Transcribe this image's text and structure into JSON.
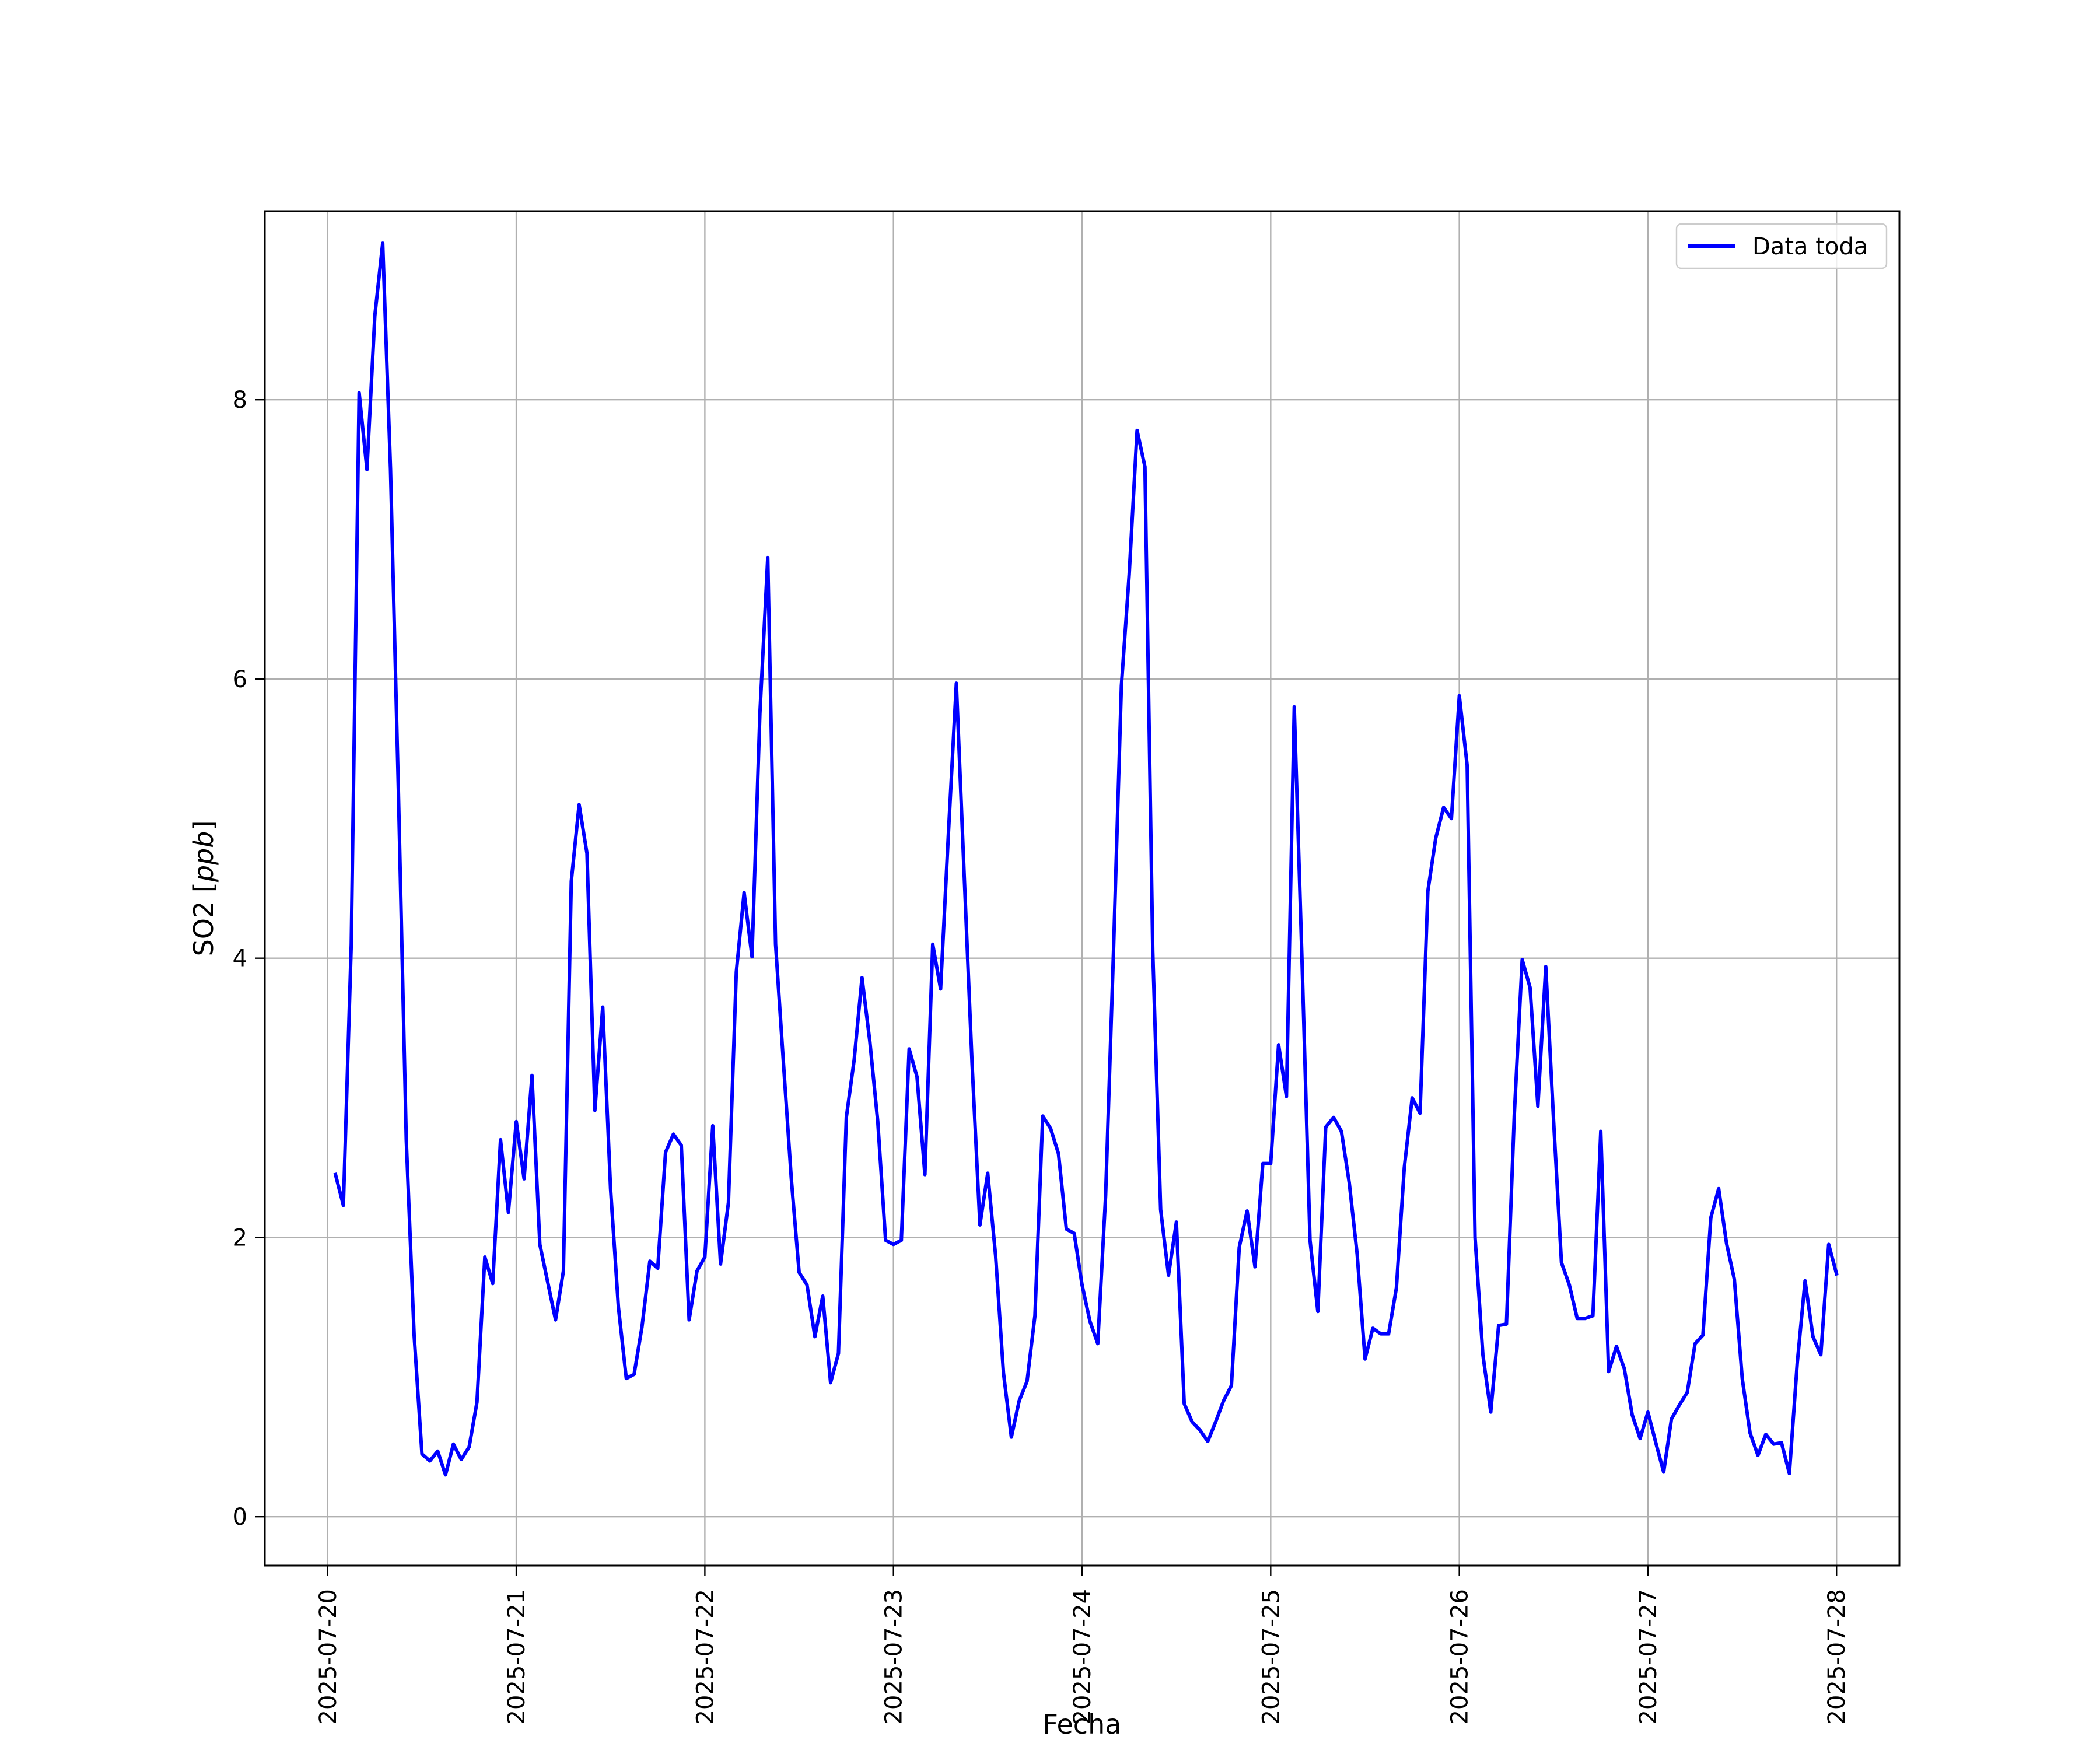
{
  "chart_data": {
    "type": "line",
    "title": "",
    "xlabel": "Fecha",
    "ylabel": "SO2 [ppb]",
    "ylabel_italic_part": "ppb",
    "xlim": [
      "2025-07-19T16:00",
      "2025-07-28T08:00"
    ],
    "ylim": [
      -0.35,
      9.35
    ],
    "x_ticks": [
      "2025-07-20",
      "2025-07-21",
      "2025-07-22",
      "2025-07-23",
      "2025-07-24",
      "2025-07-25",
      "2025-07-26",
      "2025-07-27",
      "2025-07-28"
    ],
    "y_ticks": [
      "0",
      "2",
      "4",
      "6",
      "8"
    ],
    "grid": true,
    "legend": {
      "position": "top-right",
      "entries": [
        "Data toda"
      ]
    },
    "series": [
      {
        "name": "Data toda",
        "color": "#0000ff",
        "x_start": "2025-07-20T01:00",
        "x_step": "hourly_2h",
        "points": [
          [
            "2025-07-20T01:00",
            2.45
          ],
          [
            "2025-07-20T02:00",
            2.23
          ],
          [
            "2025-07-20T03:00",
            4.1
          ],
          [
            "2025-07-20T04:00",
            8.05
          ],
          [
            "2025-07-20T05:00",
            7.5
          ],
          [
            "2025-07-20T06:00",
            8.6
          ],
          [
            "2025-07-20T07:00",
            9.12
          ],
          [
            "2025-07-20T08:00",
            7.5
          ],
          [
            "2025-07-20T09:00",
            5.2
          ],
          [
            "2025-07-20T10:00",
            2.7
          ],
          [
            "2025-07-20T11:00",
            1.3
          ],
          [
            "2025-07-20T12:00",
            0.45
          ],
          [
            "2025-07-20T13:00",
            0.4
          ],
          [
            "2025-07-20T14:00",
            0.47
          ],
          [
            "2025-07-20T15:00",
            0.3
          ],
          [
            "2025-07-20T16:00",
            0.52
          ],
          [
            "2025-07-20T17:00",
            0.41
          ],
          [
            "2025-07-20T18:00",
            0.5
          ],
          [
            "2025-07-20T19:00",
            0.82
          ],
          [
            "2025-07-20T20:00",
            1.86
          ],
          [
            "2025-07-20T21:00",
            1.67
          ],
          [
            "2025-07-20T22:00",
            2.7
          ],
          [
            "2025-07-20T23:00",
            2.18
          ],
          [
            "2025-07-21T00:00",
            2.83
          ],
          [
            "2025-07-21T01:00",
            2.42
          ],
          [
            "2025-07-21T02:00",
            3.16
          ],
          [
            "2025-07-21T03:00",
            1.95
          ],
          [
            "2025-07-21T04:00",
            1.68
          ],
          [
            "2025-07-21T05:00",
            1.41
          ],
          [
            "2025-07-21T06:00",
            1.76
          ],
          [
            "2025-07-21T07:00",
            4.55
          ],
          [
            "2025-07-21T08:00",
            5.1
          ],
          [
            "2025-07-21T09:00",
            4.75
          ],
          [
            "2025-07-21T10:00",
            2.91
          ],
          [
            "2025-07-21T11:00",
            3.65
          ],
          [
            "2025-07-21T12:00",
            2.35
          ],
          [
            "2025-07-21T13:00",
            1.5
          ],
          [
            "2025-07-21T14:00",
            0.99
          ],
          [
            "2025-07-21T15:00",
            1.02
          ],
          [
            "2025-07-21T16:00",
            1.36
          ],
          [
            "2025-07-21T17:00",
            1.83
          ],
          [
            "2025-07-21T18:00",
            1.78
          ],
          [
            "2025-07-21T19:00",
            2.61
          ],
          [
            "2025-07-21T20:00",
            2.74
          ],
          [
            "2025-07-21T21:00",
            2.66
          ],
          [
            "2025-07-21T22:00",
            1.41
          ],
          [
            "2025-07-21T23:00",
            1.76
          ],
          [
            "2025-07-22T00:00",
            1.86
          ],
          [
            "2025-07-22T01:00",
            2.8
          ],
          [
            "2025-07-22T02:00",
            1.81
          ],
          [
            "2025-07-22T03:00",
            2.25
          ],
          [
            "2025-07-22T04:00",
            3.9
          ],
          [
            "2025-07-22T05:00",
            4.47
          ],
          [
            "2025-07-22T06:00",
            4.01
          ],
          [
            "2025-07-22T07:00",
            5.75
          ],
          [
            "2025-07-22T08:00",
            6.87
          ],
          [
            "2025-07-22T09:00",
            4.1
          ],
          [
            "2025-07-22T10:00",
            3.25
          ],
          [
            "2025-07-22T11:00",
            2.42
          ],
          [
            "2025-07-22T12:00",
            1.75
          ],
          [
            "2025-07-22T13:00",
            1.66
          ],
          [
            "2025-07-22T14:00",
            1.29
          ],
          [
            "2025-07-22T15:00",
            1.58
          ],
          [
            "2025-07-22T16:00",
            0.96
          ],
          [
            "2025-07-22T17:00",
            1.17
          ],
          [
            "2025-07-22T18:00",
            2.86
          ],
          [
            "2025-07-22T19:00",
            3.27
          ],
          [
            "2025-07-22T20:00",
            3.86
          ],
          [
            "2025-07-22T21:00",
            3.4
          ],
          [
            "2025-07-22T22:00",
            2.83
          ],
          [
            "2025-07-22T23:00",
            1.98
          ],
          [
            "2025-07-23T00:00",
            1.95
          ],
          [
            "2025-07-23T01:00",
            1.98
          ],
          [
            "2025-07-23T02:00",
            3.35
          ],
          [
            "2025-07-23T03:00",
            3.15
          ],
          [
            "2025-07-23T04:00",
            2.45
          ],
          [
            "2025-07-23T05:00",
            4.1
          ],
          [
            "2025-07-23T06:00",
            3.78
          ],
          [
            "2025-07-23T07:00",
            4.9
          ],
          [
            "2025-07-23T08:00",
            5.97
          ],
          [
            "2025-07-23T09:00",
            4.6
          ],
          [
            "2025-07-23T10:00",
            3.25
          ],
          [
            "2025-07-23T11:00",
            2.09
          ],
          [
            "2025-07-23T12:00",
            2.46
          ],
          [
            "2025-07-23T13:00",
            1.87
          ],
          [
            "2025-07-23T14:00",
            1.03
          ],
          [
            "2025-07-23T15:00",
            0.57
          ],
          [
            "2025-07-23T16:00",
            0.83
          ],
          [
            "2025-07-23T17:00",
            0.97
          ],
          [
            "2025-07-23T18:00",
            1.44
          ],
          [
            "2025-07-23T19:00",
            2.87
          ],
          [
            "2025-07-23T20:00",
            2.78
          ],
          [
            "2025-07-23T21:00",
            2.6
          ],
          [
            "2025-07-23T22:00",
            2.06
          ],
          [
            "2025-07-23T23:00",
            2.03
          ],
          [
            "2025-07-24T00:00",
            1.66
          ],
          [
            "2025-07-24T01:00",
            1.4
          ],
          [
            "2025-07-24T02:00",
            1.24
          ],
          [
            "2025-07-24T03:00",
            2.3
          ],
          [
            "2025-07-24T04:00",
            4.05
          ],
          [
            "2025-07-24T05:00",
            5.95
          ],
          [
            "2025-07-24T06:00",
            6.75
          ],
          [
            "2025-07-24T07:00",
            7.78
          ],
          [
            "2025-07-24T08:00",
            7.52
          ],
          [
            "2025-07-24T09:00",
            4.05
          ],
          [
            "2025-07-24T10:00",
            2.2
          ],
          [
            "2025-07-24T11:00",
            1.73
          ],
          [
            "2025-07-24T12:00",
            2.11
          ],
          [
            "2025-07-24T13:00",
            0.81
          ],
          [
            "2025-07-24T14:00",
            0.68
          ],
          [
            "2025-07-24T15:00",
            0.62
          ],
          [
            "2025-07-24T16:00",
            0.54
          ],
          [
            "2025-07-24T17:00",
            0.68
          ],
          [
            "2025-07-24T18:00",
            0.83
          ],
          [
            "2025-07-24T19:00",
            0.94
          ],
          [
            "2025-07-24T20:00",
            1.93
          ],
          [
            "2025-07-24T21:00",
            2.19
          ],
          [
            "2025-07-24T22:00",
            1.79
          ],
          [
            "2025-07-24T23:00",
            2.53
          ],
          [
            "2025-07-25T00:00",
            2.53
          ],
          [
            "2025-07-25T01:00",
            3.38
          ],
          [
            "2025-07-25T02:00",
            3.01
          ],
          [
            "2025-07-25T03:00",
            5.8
          ],
          [
            "2025-07-25T04:00",
            3.95
          ],
          [
            "2025-07-25T05:00",
            1.98
          ],
          [
            "2025-07-25T06:00",
            1.47
          ],
          [
            "2025-07-25T07:00",
            2.79
          ],
          [
            "2025-07-25T08:00",
            2.86
          ],
          [
            "2025-07-25T09:00",
            2.76
          ],
          [
            "2025-07-25T10:00",
            2.39
          ],
          [
            "2025-07-25T11:00",
            1.88
          ],
          [
            "2025-07-25T12:00",
            1.13
          ],
          [
            "2025-07-25T13:00",
            1.35
          ],
          [
            "2025-07-25T14:00",
            1.31
          ],
          [
            "2025-07-25T15:00",
            1.31
          ],
          [
            "2025-07-25T16:00",
            1.64
          ],
          [
            "2025-07-25T17:00",
            2.5
          ],
          [
            "2025-07-25T18:00",
            3.0
          ],
          [
            "2025-07-25T19:00",
            2.89
          ],
          [
            "2025-07-25T20:00",
            4.48
          ],
          [
            "2025-07-25T21:00",
            4.86
          ],
          [
            "2025-07-25T22:00",
            5.08
          ],
          [
            "2025-07-25T23:00",
            5.0
          ],
          [
            "2025-07-26T00:00",
            5.88
          ],
          [
            "2025-07-26T01:00",
            5.38
          ],
          [
            "2025-07-26T02:00",
            2.0
          ],
          [
            "2025-07-26T03:00",
            1.16
          ],
          [
            "2025-07-26T04:00",
            0.75
          ],
          [
            "2025-07-26T05:00",
            1.37
          ],
          [
            "2025-07-26T06:00",
            1.38
          ],
          [
            "2025-07-26T07:00",
            2.88
          ],
          [
            "2025-07-26T08:00",
            3.99
          ],
          [
            "2025-07-26T09:00",
            3.79
          ],
          [
            "2025-07-26T10:00",
            2.94
          ],
          [
            "2025-07-26T11:00",
            3.94
          ],
          [
            "2025-07-26T12:00",
            2.83
          ],
          [
            "2025-07-26T13:00",
            1.82
          ],
          [
            "2025-07-26T14:00",
            1.66
          ],
          [
            "2025-07-26T15:00",
            1.42
          ],
          [
            "2025-07-26T16:00",
            1.42
          ],
          [
            "2025-07-26T17:00",
            1.44
          ],
          [
            "2025-07-26T18:00",
            2.76
          ],
          [
            "2025-07-26T19:00",
            1.04
          ],
          [
            "2025-07-26T20:00",
            1.22
          ],
          [
            "2025-07-26T21:00",
            1.06
          ],
          [
            "2025-07-26T22:00",
            0.73
          ],
          [
            "2025-07-26T23:00",
            0.56
          ],
          [
            "2025-07-27T00:00",
            0.75
          ],
          [
            "2025-07-27T01:00",
            0.53
          ],
          [
            "2025-07-27T02:00",
            0.32
          ],
          [
            "2025-07-27T03:00",
            0.7
          ],
          [
            "2025-07-27T04:00",
            0.8
          ],
          [
            "2025-07-27T05:00",
            0.89
          ],
          [
            "2025-07-27T06:00",
            1.24
          ],
          [
            "2025-07-27T07:00",
            1.3
          ],
          [
            "2025-07-27T08:00",
            2.14
          ],
          [
            "2025-07-27T09:00",
            2.35
          ],
          [
            "2025-07-27T10:00",
            1.96
          ],
          [
            "2025-07-27T11:00",
            1.7
          ],
          [
            "2025-07-27T12:00",
            0.99
          ],
          [
            "2025-07-27T13:00",
            0.6
          ],
          [
            "2025-07-27T14:00",
            0.44
          ],
          [
            "2025-07-27T15:00",
            0.59
          ],
          [
            "2025-07-27T16:00",
            0.52
          ],
          [
            "2025-07-27T17:00",
            0.53
          ],
          [
            "2025-07-27T18:00",
            0.31
          ],
          [
            "2025-07-27T19:00",
            1.1
          ],
          [
            "2025-07-27T20:00",
            1.69
          ],
          [
            "2025-07-27T21:00",
            1.29
          ],
          [
            "2025-07-27T22:00",
            1.16
          ],
          [
            "2025-07-27T23:00",
            1.95
          ],
          [
            "2025-07-28T00:00",
            1.74
          ]
        ]
      }
    ]
  }
}
